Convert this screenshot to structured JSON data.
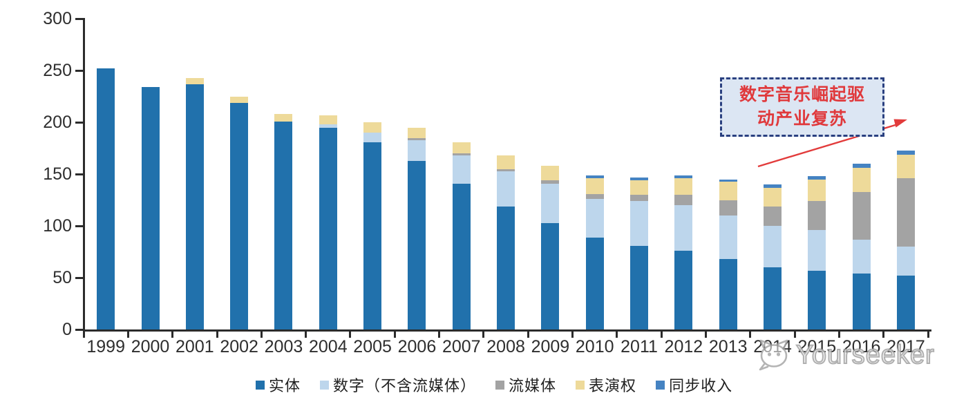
{
  "annotation": {
    "line1": "数字音乐崛起驱",
    "line2": "动产业复苏",
    "text_color": "#e0393c",
    "box_fill": "#dce6f3",
    "box_border": "#2a4080",
    "arrow_color": "#e23b3b"
  },
  "watermark": {
    "text": "Yourseeker",
    "logo": "yourseeker-cat-logo-icon",
    "color": "#a3a3a3"
  },
  "colors": {
    "background": "#ffffff",
    "axis": "#2b2b2b"
  },
  "chart_data": {
    "type": "bar",
    "stacked": true,
    "title": "",
    "xlabel": "",
    "ylabel": "",
    "ylim": [
      0,
      300
    ],
    "yticks": [
      0,
      50,
      100,
      150,
      200,
      250,
      300
    ],
    "grid": false,
    "legend_position": "bottom",
    "categories": [
      "1999",
      "2000",
      "2001",
      "2002",
      "2003",
      "2004",
      "2005",
      "2006",
      "2007",
      "2008",
      "2009",
      "2010",
      "2011",
      "2012",
      "2013",
      "2014",
      "2015",
      "2016",
      "2017"
    ],
    "series": [
      {
        "key": "physical",
        "name": "实体",
        "color": "#2171ac",
        "values": [
          252,
          234,
          237,
          219,
          201,
          195,
          181,
          163,
          141,
          119,
          103,
          89,
          81,
          76,
          68,
          60,
          57,
          54,
          52
        ]
      },
      {
        "key": "digital",
        "name": "数字（不含流媒体）",
        "color": "#bdd6ec",
        "values": [
          0,
          0,
          0,
          0,
          0,
          3,
          9,
          20,
          27,
          34,
          38,
          37,
          43,
          44,
          42,
          40,
          39,
          33,
          28
        ]
      },
      {
        "key": "streaming",
        "name": "流媒体",
        "color": "#a3a3a3",
        "values": [
          0,
          0,
          0,
          0,
          0,
          0,
          0,
          2,
          2,
          2,
          3,
          5,
          6,
          10,
          15,
          19,
          28,
          46,
          66
        ]
      },
      {
        "key": "performance",
        "name": "表演权",
        "color": "#eeda9a",
        "values": [
          0,
          0,
          6,
          6,
          7,
          9,
          10,
          10,
          11,
          13,
          14,
          15,
          14,
          16,
          18,
          18,
          21,
          23,
          23
        ]
      },
      {
        "key": "sync",
        "name": "同步收入",
        "color": "#4583c2",
        "values": [
          0,
          0,
          0,
          0,
          0,
          0,
          0,
          0,
          0,
          0,
          0,
          3,
          3,
          3,
          2,
          3,
          3,
          4,
          4
        ]
      }
    ],
    "totals": [
      252,
      234,
      243,
      225,
      208,
      207,
      200,
      195,
      181,
      168,
      158,
      149,
      147,
      149,
      145,
      140,
      148,
      160,
      173
    ]
  }
}
